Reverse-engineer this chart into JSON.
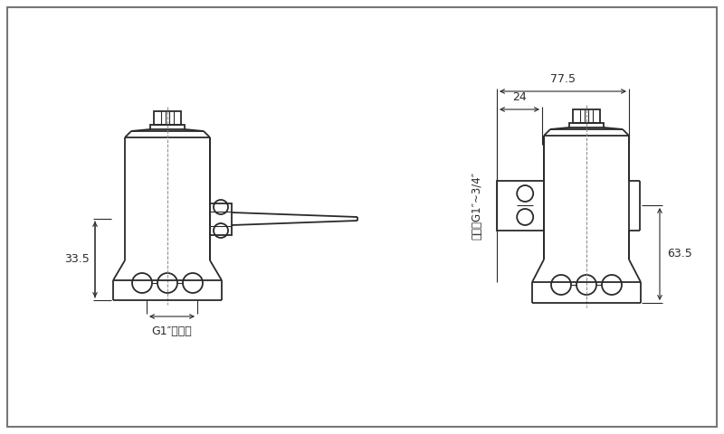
{
  "bg_color": "#ffffff",
  "line_color": "#2a2a2a",
  "lw": 1.3,
  "tlw": 0.8,
  "dlw": 0.8,
  "label_33_5": "33.5",
  "label_63_5": "63.5",
  "label_77_5": "77.5",
  "label_24": "24",
  "label_g1_drain": "G1″下水口",
  "label_inlet": "进水口G1″~3/4″"
}
